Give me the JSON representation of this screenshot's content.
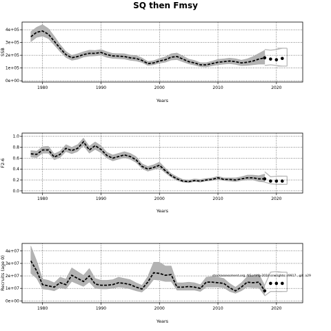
{
  "title": "SQ then Fmsy",
  "chart_data": [
    {
      "type": "line",
      "ylabel": "SSB",
      "xlabel": "Years",
      "xlim": [
        1976.5,
        2024.5
      ],
      "ylim": [
        -10000,
        460000
      ],
      "xticks": [
        1980,
        1990,
        2000,
        2010,
        2020
      ],
      "xtick_labels": [
        "1980",
        "1990",
        "2000",
        "2010",
        "2020"
      ],
      "yticks": [
        0,
        100000,
        200000,
        300000,
        400000
      ],
      "ytick_labels": [
        "0e+00",
        "1e+05",
        "2e+05",
        "3e+05",
        "4e+05"
      ],
      "grid": true,
      "x": [
        1978,
        1979,
        1980,
        1981,
        1982,
        1983,
        1984,
        1985,
        1986,
        1987,
        1988,
        1989,
        1990,
        1991,
        1992,
        1993,
        1994,
        1995,
        1996,
        1997,
        1998,
        1999,
        2000,
        2001,
        2002,
        2003,
        2004,
        2005,
        2006,
        2007,
        2008,
        2009,
        2010,
        2011,
        2012,
        2013,
        2014,
        2015,
        2016,
        2017,
        2018
      ],
      "values": [
        345000,
        380000,
        390000,
        365000,
        310000,
        255000,
        205000,
        180000,
        190000,
        205000,
        215000,
        215000,
        222000,
        205000,
        195000,
        193000,
        190000,
        180000,
        175000,
        160000,
        135000,
        140000,
        155000,
        165000,
        185000,
        190000,
        170000,
        150000,
        140000,
        125000,
        125000,
        135000,
        145000,
        150000,
        155000,
        150000,
        140000,
        145000,
        155000,
        170000,
        180000
      ],
      "lower": [
        305000,
        340000,
        350000,
        330000,
        280000,
        228000,
        182000,
        160000,
        168000,
        185000,
        193000,
        195000,
        200000,
        183000,
        175000,
        173000,
        170000,
        160000,
        155000,
        143000,
        120000,
        125000,
        138000,
        145000,
        162000,
        165000,
        148000,
        132000,
        122000,
        110000,
        108000,
        117000,
        125000,
        130000,
        133000,
        128000,
        118000,
        120000,
        125000,
        130000,
        130000
      ],
      "upper": [
        385000,
        420000,
        440000,
        410000,
        350000,
        285000,
        230000,
        200000,
        212000,
        228000,
        240000,
        238000,
        245000,
        228000,
        215000,
        213000,
        212000,
        202000,
        198000,
        180000,
        152000,
        158000,
        175000,
        188000,
        212000,
        218000,
        195000,
        170000,
        160000,
        142000,
        142000,
        154000,
        168000,
        172000,
        178000,
        173000,
        162000,
        172000,
        190000,
        215000,
        240000
      ],
      "projection": {
        "x": [
          2018,
          2019,
          2020,
          2021
        ],
        "values": [
          180000,
          170000,
          165000,
          175000
        ],
        "lower": [
          120000,
          125000,
          120000,
          115000
        ],
        "upper": [
          245000,
          240000,
          245000,
          255000
        ]
      }
    },
    {
      "type": "line",
      "ylabel": "F2-6",
      "xlabel": "Years",
      "xlim": [
        1976.5,
        2024.5
      ],
      "ylim": [
        -0.04,
        1.06
      ],
      "xticks": [
        1980,
        1990,
        2000,
        2010,
        2020
      ],
      "xtick_labels": [
        "1980",
        "1990",
        "2000",
        "2010",
        "2020"
      ],
      "yticks": [
        0,
        0.2,
        0.4,
        0.6,
        0.8,
        1.0
      ],
      "ytick_labels": [
        "0.0",
        "0.2",
        "0.4",
        "0.6",
        "0.8",
        "1.0"
      ],
      "grid": true,
      "x": [
        1978,
        1979,
        1980,
        1981,
        1982,
        1983,
        1984,
        1985,
        1986,
        1987,
        1988,
        1989,
        1990,
        1991,
        1992,
        1993,
        1994,
        1995,
        1996,
        1997,
        1998,
        1999,
        2000,
        2001,
        2002,
        2003,
        2004,
        2005,
        2006,
        2007,
        2008,
        2009,
        2010,
        2011,
        2012,
        2013,
        2014,
        2015,
        2016,
        2017,
        2018
      ],
      "values": [
        0.68,
        0.67,
        0.75,
        0.75,
        0.62,
        0.67,
        0.78,
        0.74,
        0.78,
        0.9,
        0.75,
        0.83,
        0.76,
        0.65,
        0.6,
        0.63,
        0.66,
        0.63,
        0.57,
        0.45,
        0.4,
        0.43,
        0.47,
        0.37,
        0.28,
        0.22,
        0.18,
        0.17,
        0.19,
        0.18,
        0.2,
        0.21,
        0.24,
        0.21,
        0.21,
        0.2,
        0.22,
        0.24,
        0.24,
        0.22,
        0.22
      ],
      "lower": [
        0.62,
        0.61,
        0.69,
        0.69,
        0.57,
        0.61,
        0.72,
        0.68,
        0.72,
        0.83,
        0.69,
        0.76,
        0.7,
        0.6,
        0.55,
        0.58,
        0.61,
        0.58,
        0.52,
        0.41,
        0.36,
        0.39,
        0.42,
        0.33,
        0.25,
        0.19,
        0.16,
        0.15,
        0.17,
        0.16,
        0.18,
        0.19,
        0.21,
        0.19,
        0.18,
        0.17,
        0.19,
        0.2,
        0.2,
        0.17,
        0.16
      ],
      "upper": [
        0.74,
        0.73,
        0.81,
        0.82,
        0.68,
        0.73,
        0.85,
        0.8,
        0.85,
        0.97,
        0.82,
        0.9,
        0.83,
        0.71,
        0.66,
        0.69,
        0.72,
        0.69,
        0.63,
        0.5,
        0.45,
        0.48,
        0.53,
        0.42,
        0.32,
        0.26,
        0.21,
        0.2,
        0.22,
        0.21,
        0.23,
        0.24,
        0.27,
        0.24,
        0.24,
        0.24,
        0.26,
        0.29,
        0.29,
        0.28,
        0.31
      ],
      "projection": {
        "x": [
          2018,
          2019,
          2020,
          2021
        ],
        "values": [
          0.22,
          0.18,
          0.18,
          0.18
        ],
        "lower": [
          0.16,
          0.13,
          0.12,
          0.12
        ],
        "upper": [
          0.35,
          0.26,
          0.27,
          0.27
        ]
      }
    },
    {
      "type": "line",
      "ylabel": "Recruits (age 0)",
      "xlabel": "Years",
      "xlim": [
        1976.5,
        2024.5
      ],
      "ylim": [
        -1500000,
        46000000
      ],
      "xticks": [
        1980,
        1990,
        2000,
        2010,
        2020
      ],
      "xtick_labels": [
        "1980",
        "1990",
        "2000",
        "2010",
        "2020"
      ],
      "yticks": [
        0,
        10000000,
        20000000,
        30000000,
        40000000
      ],
      "ytick_labels": [
        "0e+00",
        "1e+07",
        "2e+07",
        "3e+07",
        "4e+07"
      ],
      "grid": true,
      "annotation": "stockassessment.org, NSorting-2018 srwrights: r9917 , git: a29",
      "x": [
        1978,
        1979,
        1980,
        1981,
        1982,
        1983,
        1984,
        1985,
        1986,
        1987,
        1988,
        1989,
        1990,
        1991,
        1992,
        1993,
        1994,
        1995,
        1996,
        1997,
        1998,
        1999,
        2000,
        2001,
        2002,
        2003,
        2004,
        2005,
        2006,
        2007,
        2008,
        2009,
        2010,
        2011,
        2012,
        2013,
        2014,
        2015,
        2016,
        2017,
        2018
      ],
      "values": [
        32000000,
        24000000,
        13000000,
        12000000,
        11000000,
        14500000,
        13000000,
        20500000,
        18000000,
        15500000,
        20000000,
        13500000,
        12500000,
        12500000,
        13000000,
        14500000,
        14000000,
        13000000,
        11000000,
        9500000,
        15000000,
        22500000,
        22000000,
        20500000,
        21000000,
        11000000,
        11000000,
        11500000,
        11000000,
        10000000,
        15000000,
        15000000,
        14500000,
        14000000,
        10500000,
        8000000,
        11000000,
        15000000,
        14500000,
        15000000,
        8000000
      ],
      "lower": [
        22000000,
        18000000,
        9500000,
        9000000,
        8000000,
        10500000,
        9500000,
        15500000,
        13500000,
        11500000,
        15000000,
        10000000,
        9500000,
        9500000,
        10000000,
        11000000,
        10500000,
        9500000,
        8000000,
        7000000,
        11000000,
        17000000,
        16500000,
        15500000,
        15500000,
        8500000,
        8500000,
        8500000,
        8500000,
        7500000,
        11000000,
        11000000,
        11000000,
        10500000,
        7500000,
        6000000,
        8000000,
        11000000,
        10500000,
        10500000,
        4000000
      ],
      "upper": [
        44000000,
        32000000,
        17500000,
        16500000,
        14500000,
        19000000,
        17500000,
        26500000,
        23500000,
        20500000,
        26000000,
        18000000,
        16500000,
        16500000,
        17000000,
        19000000,
        18000000,
        17000000,
        14500000,
        12500000,
        19500000,
        31000000,
        31000000,
        28000000,
        28000000,
        14500000,
        14500000,
        15000000,
        14500000,
        13000000,
        19000000,
        19500000,
        19000000,
        18000000,
        14000000,
        11000000,
        14500000,
        19500000,
        20000000,
        21500000,
        12500000
      ],
      "projection": {
        "x": [
          2018,
          2019,
          2020,
          2021
        ],
        "values": [
          8000000,
          14000000,
          14000000,
          14000000
        ],
        "lower": [
          4000000,
          7500000,
          7500000,
          7500000
        ],
        "upper": [
          12500000,
          23000000,
          23500000,
          23000000
        ]
      }
    }
  ]
}
